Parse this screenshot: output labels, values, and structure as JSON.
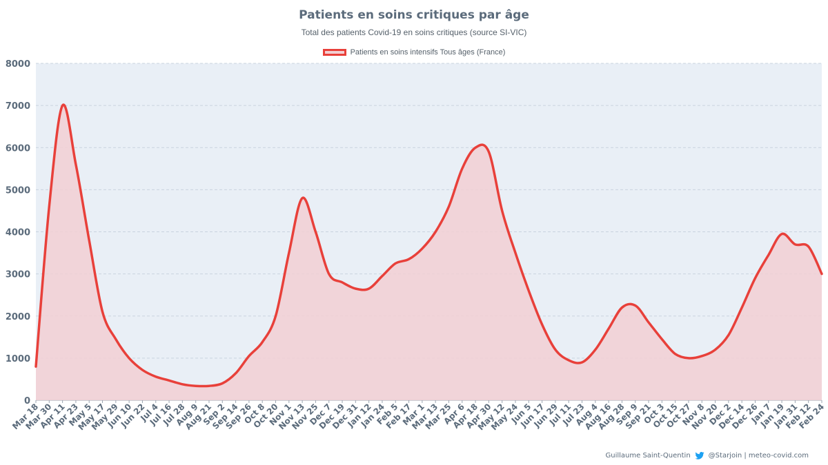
{
  "chart_data": {
    "type": "area",
    "title": "Patients en soins critiques par âge",
    "subtitle": "Total des patients Covid-19 en soins critiques (source SI-VIC)",
    "legend": "Patients en soins intensifs Tous âges (France)",
    "series": [
      {
        "name": "Patients en soins intensifs Tous âges (France)",
        "x": [
          "Mar 18",
          "Mar 30",
          "Apr 11",
          "Apr 23",
          "May 5",
          "May 17",
          "May 29",
          "Jun 10",
          "Jun 22",
          "Jul 4",
          "Jul 16",
          "Jul 28",
          "Aug 9",
          "Aug 21",
          "Sep 2",
          "Sep 14",
          "Sep 26",
          "Oct 8",
          "Oct 20",
          "Nov 1",
          "Nov 13",
          "Nov 25",
          "Dec 7",
          "Dec 19",
          "Dec 31",
          "Jan 12",
          "Jan 24",
          "Feb 5",
          "Feb 17",
          "Mar 1",
          "Mar 13",
          "Mar 25",
          "Apr 6",
          "Apr 18",
          "Apr 30",
          "May 12",
          "May 24",
          "Jun 5",
          "Jun 17",
          "Jun 29",
          "Jul 11",
          "Jul 23",
          "Aug 4",
          "Aug 16",
          "Aug 28",
          "Sep 9",
          "Sep 21",
          "Oct 3",
          "Oct 15",
          "Oct 27",
          "Nov 8",
          "Nov 20",
          "Dec 2",
          "Dec 14",
          "Dec 26",
          "Jan 7",
          "Jan 19",
          "Jan 31",
          "Feb 12",
          "Feb 24"
        ],
        "values": [
          800,
          4600,
          7000,
          5600,
          3800,
          2100,
          1450,
          1000,
          720,
          560,
          470,
          380,
          340,
          340,
          400,
          640,
          1050,
          1380,
          2000,
          3500,
          4800,
          4000,
          3000,
          2800,
          2650,
          2650,
          2950,
          3250,
          3350,
          3600,
          4000,
          4600,
          5500,
          6000,
          5900,
          4500,
          3500,
          2600,
          1800,
          1200,
          950,
          900,
          1200,
          1700,
          2200,
          2250,
          1850,
          1450,
          1100,
          1000,
          1050,
          1200,
          1550,
          2200,
          2900,
          3450,
          3950,
          3700,
          3650,
          3000
        ]
      }
    ],
    "ylim": [
      0,
      8000
    ],
    "yticks": [
      "0",
      "1000",
      "2000",
      "3000",
      "4000",
      "5000",
      "6000",
      "7000",
      "8000"
    ],
    "xlabels": [
      "Mar 18",
      "Mar 30",
      "Apr 11",
      "Apr 23",
      "May 5",
      "May 17",
      "May 29",
      "Jun 10",
      "Jun 22",
      "Jul 4",
      "Jul 16",
      "Jul 28",
      "Aug 9",
      "Aug 21",
      "Sep 2",
      "Sep 14",
      "Sep 26",
      "Oct 8",
      "Oct 20",
      "Nov 1",
      "Nov 13",
      "Nov 25",
      "Dec 7",
      "Dec 19",
      "Dec 31",
      "Jan 12",
      "Jan 24",
      "Feb 5",
      "Feb 17",
      "Mar 1",
      "Mar 13",
      "Mar 25",
      "Apr 6",
      "Apr 18",
      "Apr 30",
      "May 12",
      "May 24",
      "Jun 5",
      "Jun 17",
      "Jun 29",
      "Jul 11",
      "Jul 23",
      "Aug 4",
      "Aug 16",
      "Aug 28",
      "Sep 9",
      "Sep 21",
      "Oct 3",
      "Oct 15",
      "Oct 27",
      "Nov 8",
      "Nov 20",
      "Dec 2",
      "Dec 14",
      "Dec 26",
      "Jan 7",
      "Jan 19",
      "Jan 31",
      "Feb 12",
      "Feb 24"
    ],
    "grid": true,
    "legend_position": "top-center",
    "colors": {
      "line": "#e8403a",
      "fill": "#f2cfd3",
      "plot_bg": "#e9eff6",
      "grid": "#c9d3de"
    }
  },
  "footer": {
    "author": "Guillaume Saint-Quentin",
    "handle": "@Starjoin | meteo-covid.com",
    "icon": "twitter-bird-icon"
  }
}
